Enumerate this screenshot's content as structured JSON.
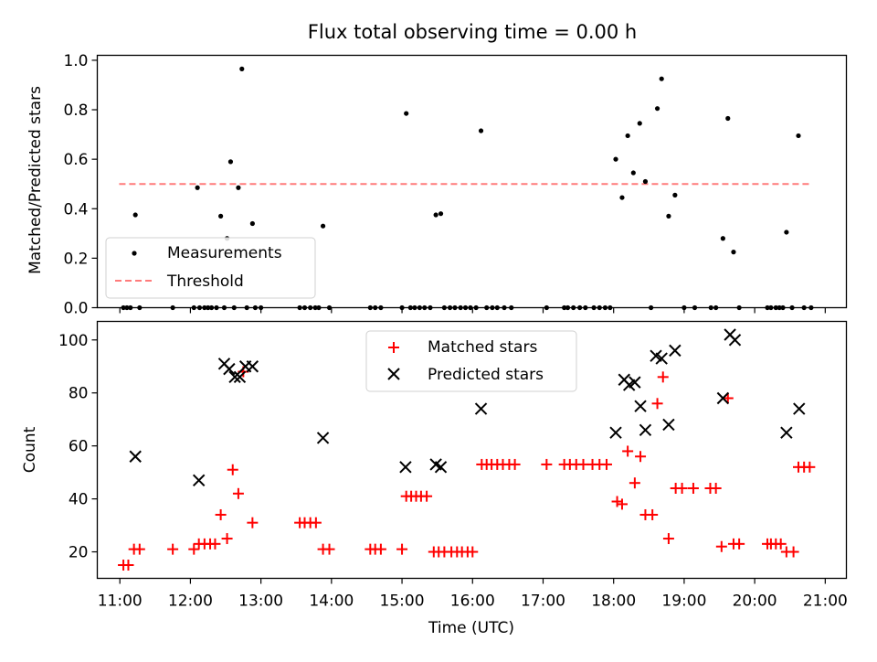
{
  "title": "Flux total observing time = 0.00 h",
  "chart_data": [
    {
      "type": "scatter",
      "name": "ratio-panel",
      "ylabel": "Matched/Predicted stars",
      "xlabel": "",
      "xlim": [
        10.68,
        21.3
      ],
      "ylim": [
        0.0,
        1.02
      ],
      "yticks": [
        0.0,
        0.2,
        0.4,
        0.6,
        0.8,
        1.0
      ],
      "ytick_labels": [
        "0.0",
        "0.2",
        "0.4",
        "0.6",
        "0.8",
        "1.0"
      ],
      "xticks": [
        11,
        12,
        13,
        14,
        15,
        16,
        17,
        18,
        19,
        20,
        21
      ],
      "legend_position": "lower-left",
      "threshold": {
        "label": "Threshold",
        "value": 0.5,
        "x_range": [
          10.99,
          20.82
        ],
        "color": "#ff7b7b",
        "style": "dashed"
      },
      "series": [
        {
          "name": "Measurements",
          "marker": "dot",
          "color": "#000000",
          "x": [
            11.05,
            11.1,
            11.15,
            11.22,
            11.28,
            11.75,
            12.05,
            12.1,
            12.13,
            12.2,
            12.25,
            12.3,
            12.37,
            12.43,
            12.48,
            12.52,
            12.57,
            12.62,
            12.68,
            12.73,
            12.8,
            12.88,
            12.92,
            13.0,
            13.55,
            13.62,
            13.7,
            13.77,
            13.82,
            13.88,
            13.97,
            14.55,
            14.62,
            14.7,
            15.0,
            15.06,
            15.12,
            15.18,
            15.25,
            15.32,
            15.4,
            15.48,
            15.55,
            15.6,
            15.68,
            15.75,
            15.83,
            15.9,
            15.97,
            16.05,
            16.12,
            16.2,
            16.28,
            16.35,
            16.45,
            16.55,
            17.05,
            17.3,
            17.35,
            17.43,
            17.52,
            17.6,
            17.72,
            17.8,
            17.88,
            17.95,
            18.03,
            18.12,
            18.2,
            18.28,
            18.37,
            18.45,
            18.53,
            18.62,
            18.68,
            18.78,
            18.87,
            19.0,
            19.15,
            19.38,
            19.45,
            19.55,
            19.62,
            19.7,
            19.78,
            20.18,
            20.23,
            20.3,
            20.35,
            20.4,
            20.45,
            20.53,
            20.62,
            20.7,
            20.8
          ],
          "y": [
            0.0,
            0.0,
            0.0,
            0.375,
            0.0,
            0.0,
            0.0,
            0.485,
            0.0,
            0.0,
            0.0,
            0.0,
            0.0,
            0.37,
            0.0,
            0.28,
            0.59,
            0.0,
            0.485,
            0.965,
            0.0,
            0.34,
            0.0,
            0.0,
            0.0,
            0.0,
            0.0,
            0.0,
            0.0,
            0.33,
            0.0,
            0.0,
            0.0,
            0.0,
            0.0,
            0.785,
            0.0,
            0.0,
            0.0,
            0.0,
            0.0,
            0.375,
            0.38,
            0.0,
            0.0,
            0.0,
            0.0,
            0.0,
            0.0,
            0.0,
            0.715,
            0.0,
            0.0,
            0.0,
            0.0,
            0.0,
            0.0,
            0.0,
            0.0,
            0.0,
            0.0,
            0.0,
            0.0,
            0.0,
            0.0,
            0.0,
            0.6,
            0.445,
            0.695,
            0.545,
            0.745,
            0.51,
            0.0,
            0.805,
            0.925,
            0.37,
            0.455,
            0.0,
            0.0,
            0.0,
            0.0,
            0.28,
            0.765,
            0.225,
            0.0,
            0.0,
            0.0,
            0.0,
            0.0,
            0.0,
            0.305,
            0.0,
            0.695,
            0.0,
            0.0
          ]
        }
      ]
    },
    {
      "type": "scatter",
      "name": "count-panel",
      "ylabel": "Count",
      "xlabel": "Time (UTC)",
      "xlim": [
        10.68,
        21.3
      ],
      "ylim": [
        10,
        107
      ],
      "yticks": [
        20,
        40,
        60,
        80,
        100
      ],
      "ytick_labels": [
        "20",
        "40",
        "60",
        "80",
        "100"
      ],
      "xticks": [
        11,
        12,
        13,
        14,
        15,
        16,
        17,
        18,
        19,
        20,
        21
      ],
      "xtick_labels": [
        "11:00",
        "12:00",
        "13:00",
        "14:00",
        "15:00",
        "16:00",
        "17:00",
        "18:00",
        "19:00",
        "20:00",
        "21:00"
      ],
      "legend_position": "upper-center",
      "series": [
        {
          "name": "Matched stars",
          "marker": "plus",
          "color": "#ff0000",
          "x": [
            11.05,
            11.12,
            11.2,
            11.28,
            11.75,
            12.05,
            12.12,
            12.2,
            12.28,
            12.35,
            12.43,
            12.52,
            12.6,
            12.68,
            12.75,
            12.88,
            13.55,
            13.62,
            13.7,
            13.78,
            13.88,
            13.97,
            14.55,
            14.62,
            14.7,
            15.0,
            15.06,
            15.13,
            15.2,
            15.27,
            15.35,
            15.45,
            15.52,
            15.6,
            15.7,
            15.78,
            15.85,
            15.93,
            16.0,
            16.13,
            16.2,
            16.27,
            16.35,
            16.43,
            16.52,
            16.6,
            17.05,
            17.3,
            17.38,
            17.47,
            17.57,
            17.7,
            17.8,
            17.9,
            18.05,
            18.12,
            18.2,
            18.3,
            18.38,
            18.45,
            18.55,
            18.62,
            18.7,
            18.78,
            18.88,
            18.97,
            19.13,
            19.37,
            19.45,
            19.53,
            19.62,
            19.7,
            19.78,
            20.18,
            20.23,
            20.3,
            20.37,
            20.45,
            20.55,
            20.62,
            20.7,
            20.78
          ],
          "y": [
            15,
            15,
            21,
            21,
            21,
            21,
            23,
            23,
            23,
            23,
            34,
            25,
            51,
            42,
            88,
            31,
            31,
            31,
            31,
            31,
            21,
            21,
            21,
            21,
            21,
            21,
            41,
            41,
            41,
            41,
            41,
            20,
            20,
            20,
            20,
            20,
            20,
            20,
            20,
            53,
            53,
            53,
            53,
            53,
            53,
            53,
            53,
            53,
            53,
            53,
            53,
            53,
            53,
            53,
            39,
            38,
            58,
            46,
            56,
            34,
            34,
            76,
            86,
            25,
            44,
            44,
            44,
            44,
            44,
            22,
            78,
            23,
            23,
            23,
            23,
            23,
            23,
            20,
            20,
            52,
            52,
            52
          ]
        },
        {
          "name": "Predicted stars",
          "marker": "x",
          "color": "#000000",
          "x": [
            11.22,
            12.12,
            12.48,
            12.55,
            12.63,
            12.7,
            12.78,
            12.88,
            13.88,
            15.05,
            15.48,
            15.55,
            16.12,
            18.03,
            18.15,
            18.22,
            18.3,
            18.38,
            18.45,
            18.6,
            18.68,
            18.78,
            18.87,
            19.55,
            19.65,
            19.72,
            20.45,
            20.63
          ],
          "y": [
            56,
            47,
            91,
            89,
            86,
            86,
            90,
            90,
            63,
            52,
            53,
            52,
            74,
            65,
            85,
            83,
            84,
            75,
            66,
            94,
            93,
            68,
            96,
            78,
            102,
            100,
            65,
            74
          ]
        }
      ]
    }
  ]
}
